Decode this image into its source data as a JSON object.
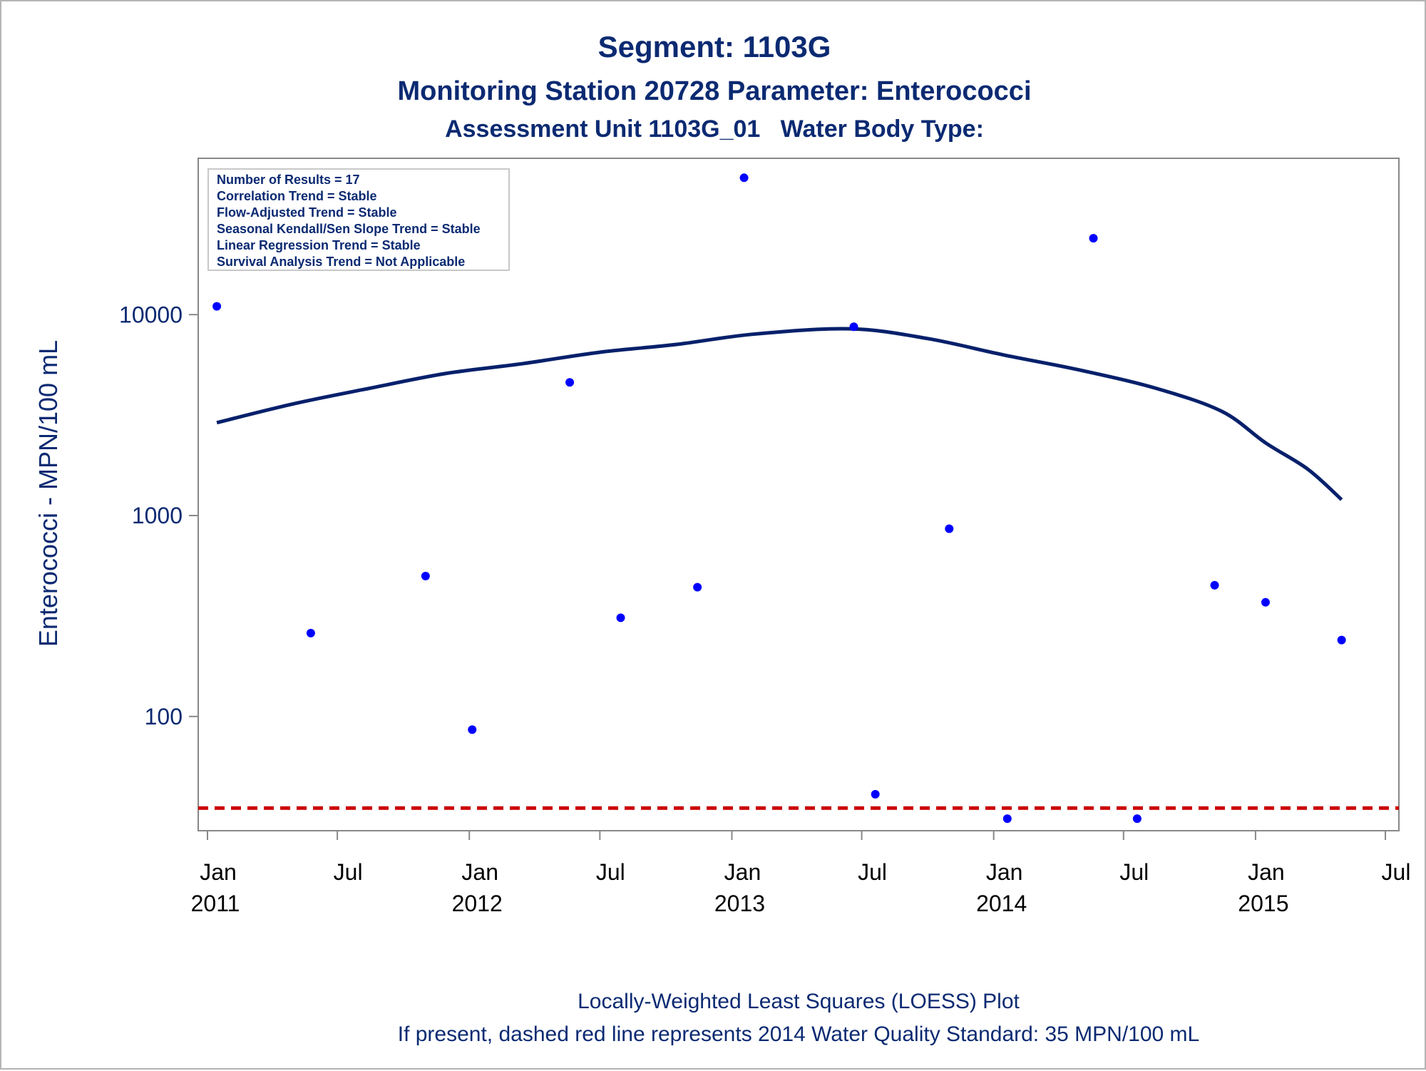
{
  "chart_data": {
    "type": "scatter",
    "title": "Segment: 1103G",
    "subtitle": "Monitoring Station 20728 Parameter: Enterococci",
    "subtitle2": "Assessment Unit 1103G_01   Water Body Type:",
    "ylabel": "Enterococci - MPN/100 mL",
    "yscale": "log",
    "ylim": [
      27,
      60000
    ],
    "xlim": [
      "2011-01-01",
      "2015-07-01"
    ],
    "yticks": [
      {
        "value": 100,
        "label": "100"
      },
      {
        "value": 1000,
        "label": "1000"
      },
      {
        "value": 10000,
        "label": "10000"
      }
    ],
    "xticks": [
      {
        "date": "2011-01-01",
        "month": "Jan",
        "year": "2011"
      },
      {
        "date": "2011-07-01",
        "month": "Jul",
        "year": ""
      },
      {
        "date": "2012-01-01",
        "month": "Jan",
        "year": "2012"
      },
      {
        "date": "2012-07-01",
        "month": "Jul",
        "year": ""
      },
      {
        "date": "2013-01-01",
        "month": "Jan",
        "year": "2013"
      },
      {
        "date": "2013-07-01",
        "month": "Jul",
        "year": ""
      },
      {
        "date": "2014-01-01",
        "month": "Jan",
        "year": "2014"
      },
      {
        "date": "2014-07-01",
        "month": "Jul",
        "year": ""
      },
      {
        "date": "2015-01-01",
        "month": "Jan",
        "year": "2015"
      },
      {
        "date": "2015-07-01",
        "month": "Jul",
        "year": ""
      }
    ],
    "points": [
      {
        "date": "2011-01-14",
        "value": 11000
      },
      {
        "date": "2011-05-25",
        "value": 260
      },
      {
        "date": "2011-11-01",
        "value": 500
      },
      {
        "date": "2012-01-05",
        "value": 86
      },
      {
        "date": "2012-05-20",
        "value": 4600
      },
      {
        "date": "2012-07-30",
        "value": 310
      },
      {
        "date": "2012-11-14",
        "value": 440
      },
      {
        "date": "2013-01-18",
        "value": 48000
      },
      {
        "date": "2013-06-20",
        "value": 8700
      },
      {
        "date": "2013-07-20",
        "value": 41
      },
      {
        "date": "2013-10-31",
        "value": 860
      },
      {
        "date": "2014-01-20",
        "value": 31
      },
      {
        "date": "2014-05-20",
        "value": 24000
      },
      {
        "date": "2014-07-20",
        "value": 31
      },
      {
        "date": "2014-11-05",
        "value": 450
      },
      {
        "date": "2015-01-15",
        "value": 370
      },
      {
        "date": "2015-05-01",
        "value": 240
      }
    ],
    "loess": [
      {
        "date": "2011-01-14",
        "value": 2900
      },
      {
        "date": "2011-05-01",
        "value": 3600
      },
      {
        "date": "2011-08-15",
        "value": 4300
      },
      {
        "date": "2011-11-30",
        "value": 5100
      },
      {
        "date": "2012-03-15",
        "value": 5700
      },
      {
        "date": "2012-07-01",
        "value": 6500
      },
      {
        "date": "2012-10-15",
        "value": 7100
      },
      {
        "date": "2013-02-01",
        "value": 8000
      },
      {
        "date": "2013-06-15",
        "value": 8500
      },
      {
        "date": "2013-10-01",
        "value": 7600
      },
      {
        "date": "2014-01-15",
        "value": 6300
      },
      {
        "date": "2014-05-01",
        "value": 5300
      },
      {
        "date": "2014-08-15",
        "value": 4300
      },
      {
        "date": "2014-11-15",
        "value": 3300
      },
      {
        "date": "2015-01-15",
        "value": 2300
      },
      {
        "date": "2015-03-15",
        "value": 1700
      },
      {
        "date": "2015-05-01",
        "value": 1200
      }
    ],
    "standard": {
      "value": 35,
      "style": "dashed",
      "color": "#cc0000"
    },
    "legend_placement": "top-left",
    "legend": [
      "Number of Results = 17",
      "Correlation Trend = Stable",
      "Flow-Adjusted Trend = Stable",
      "Seasonal Kendall/Sen Slope Trend = Stable",
      "Linear Regression Trend = Stable",
      "Survival Analysis Trend = Not Applicable"
    ],
    "footnotes": [
      "Locally-Weighted Least Squares (LOESS) Plot",
      "If present, dashed red line represents 2014 Water Quality Standard: 35 MPN/100 mL"
    ],
    "colors": {
      "points": "#0000ff",
      "loess": "#06206b",
      "standard": "#cc0000",
      "text": "#0b2a72",
      "axis": "#888888"
    }
  }
}
